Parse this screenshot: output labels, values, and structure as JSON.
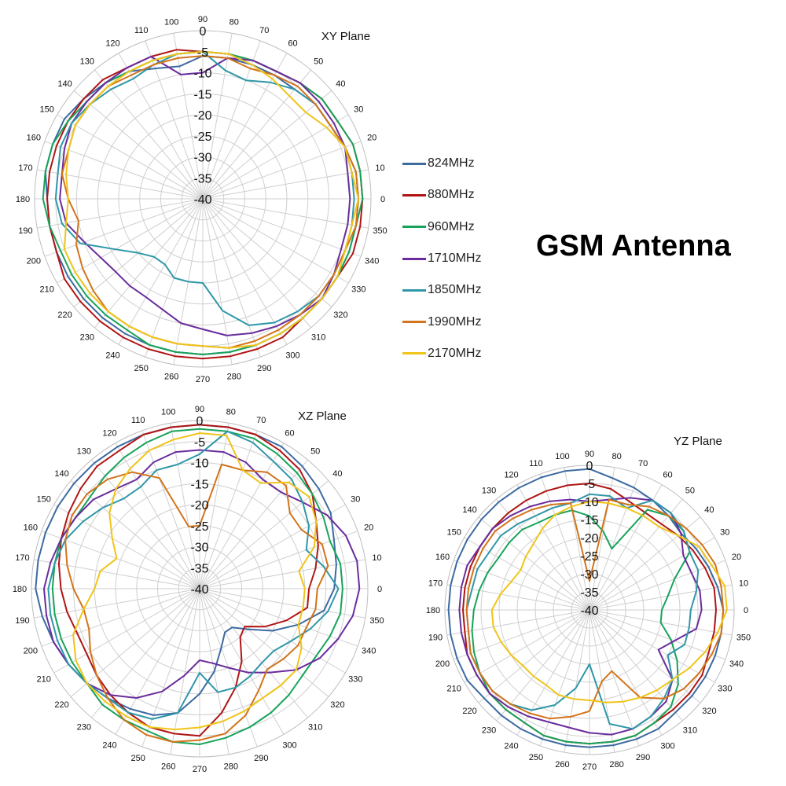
{
  "figure": {
    "title": "GSM Antenna"
  },
  "legend": {
    "items": [
      {
        "name": "824MHz",
        "color": "#3d6aa1"
      },
      {
        "name": "880MHz",
        "color": "#b01515"
      },
      {
        "name": "960MHz",
        "color": "#18a35a"
      },
      {
        "name": "1710MHz",
        "color": "#6a2c9c"
      },
      {
        "name": "1850MHz",
        "color": "#2f97a8"
      },
      {
        "name": "1990MHz",
        "color": "#d2741b"
      },
      {
        "name": "2170MHz",
        "color": "#f0c419"
      }
    ]
  },
  "chart_data": [
    {
      "type": "polar-line",
      "title": "XY Plane",
      "angles_deg": [
        0,
        10,
        20,
        30,
        40,
        50,
        60,
        70,
        80,
        90,
        100,
        110,
        120,
        130,
        140,
        150,
        160,
        170,
        180,
        190,
        200,
        210,
        220,
        230,
        240,
        250,
        260,
        270,
        280,
        290,
        300,
        310,
        320,
        330,
        340,
        350
      ],
      "angle_tick_labels": [
        "0",
        "10",
        "20",
        "30",
        "40",
        "50",
        "60",
        "70",
        "80",
        "90",
        "100",
        "110",
        "120",
        "130",
        "140",
        "150",
        "160",
        "170",
        "180",
        "190",
        "200",
        "210",
        "220",
        "230",
        "240",
        "250",
        "260",
        "270",
        "280",
        "290",
        "300",
        "310",
        "320",
        "330",
        "340",
        "350"
      ],
      "radial_ticks": [
        0,
        -5,
        -10,
        -15,
        -20,
        -25,
        -30,
        -35,
        -40
      ],
      "rlim": [
        -40,
        0
      ],
      "grid": true,
      "series": [
        {
          "name": "824MHz",
          "color": "#3d6aa1",
          "values": [
            -3,
            -3,
            -4,
            -5,
            -5,
            -6,
            -6,
            -6,
            -6,
            -6,
            -8,
            -7,
            -5,
            -4,
            -3,
            -2,
            -2,
            -2,
            -3,
            -3,
            -3,
            -3,
            -3,
            -3,
            -3,
            -3,
            -3,
            -3,
            -3,
            -3,
            -3,
            -3,
            -3,
            -3,
            -3,
            -3
          ]
        },
        {
          "name": "880MHz",
          "color": "#b01515",
          "values": [
            -2,
            -2,
            -2,
            -3,
            -3,
            -4,
            -5,
            -5,
            -5,
            -5,
            -4,
            -4,
            -4,
            -3,
            -3,
            -3,
            -3,
            -3,
            -3,
            -3,
            -3,
            -2,
            -2,
            -2,
            -2,
            -2,
            -2,
            -2,
            -2,
            -2,
            -2,
            -3,
            -3,
            -3,
            -2,
            -2
          ]
        },
        {
          "name": "960MHz",
          "color": "#18a35a",
          "values": [
            -2,
            -2,
            -2,
            -3,
            -3,
            -4,
            -5,
            -5,
            -5,
            -5,
            -5,
            -5,
            -5,
            -4,
            -4,
            -3,
            -2,
            -2,
            -2,
            -3,
            -4,
            -4,
            -4,
            -4,
            -4,
            -3,
            -3,
            -3,
            -3,
            -3,
            -3,
            -3,
            -3,
            -3,
            -3,
            -3
          ]
        },
        {
          "name": "1710MHz",
          "color": "#6a2c9c",
          "values": [
            -5,
            -5,
            -4,
            -4,
            -4,
            -4,
            -5,
            -5,
            -6,
            -10,
            -10,
            -4,
            -4,
            -4,
            -4,
            -4,
            -5,
            -6,
            -6,
            -7,
            -10,
            -12,
            -13,
            -13,
            -13,
            -12,
            -10,
            -9,
            -7,
            -6,
            -5,
            -4,
            -3,
            -4,
            -5,
            -5
          ]
        },
        {
          "name": "1850MHz",
          "color": "#2f97a8",
          "values": [
            -4,
            -4,
            -4,
            -5,
            -5,
            -6,
            -8,
            -10,
            -9,
            -5,
            -5,
            -6,
            -7,
            -6,
            -5,
            -4,
            -4,
            -5,
            -5,
            -6,
            -9,
            -16,
            -20,
            -22,
            -22,
            -20,
            -20,
            -20,
            -13,
            -8,
            -6,
            -5,
            -4,
            -4,
            -4,
            -4
          ]
        },
        {
          "name": "1990MHz",
          "color": "#d2741b",
          "values": [
            -3,
            -3,
            -4,
            -5,
            -5,
            -5,
            -6,
            -7,
            -6,
            -6,
            -6,
            -6,
            -6,
            -5,
            -5,
            -5,
            -6,
            -6,
            -8,
            -10,
            -8,
            -7,
            -6,
            -5,
            -5,
            -5,
            -5,
            -5,
            -4,
            -4,
            -4,
            -4,
            -4,
            -4,
            -4,
            -3
          ]
        },
        {
          "name": "2170MHz",
          "color": "#f0c419",
          "values": [
            -3,
            -4,
            -4,
            -6,
            -8,
            -8,
            -7,
            -6,
            -5,
            -5,
            -5,
            -5,
            -5,
            -5,
            -5,
            -5,
            -6,
            -7,
            -8,
            -7,
            -5,
            -5,
            -5,
            -5,
            -5,
            -5,
            -5,
            -5,
            -4,
            -3,
            -3,
            -3,
            -3,
            -3,
            -4,
            -4
          ]
        }
      ]
    },
    {
      "type": "polar-line",
      "title": "XZ Plane",
      "angles_deg": [
        0,
        10,
        20,
        30,
        40,
        50,
        60,
        70,
        80,
        90,
        100,
        110,
        120,
        130,
        140,
        150,
        160,
        170,
        180,
        190,
        200,
        210,
        220,
        230,
        240,
        250,
        260,
        270,
        280,
        290,
        300,
        310,
        320,
        330,
        340,
        350
      ],
      "angle_tick_labels": [
        "0",
        "10",
        "20",
        "30",
        "40",
        "50",
        "60",
        "70",
        "80",
        "90",
        "100",
        "110",
        "120",
        "130",
        "140",
        "150",
        "160",
        "170",
        "180",
        "190",
        "200",
        "210",
        "220",
        "230",
        "240",
        "250",
        "260",
        "270",
        "280",
        "290",
        "300",
        "310",
        "320",
        "330",
        "340",
        "350"
      ],
      "radial_ticks": [
        0,
        -5,
        -10,
        -15,
        -20,
        -25,
        -30,
        -35,
        -40
      ],
      "rlim": [
        -40,
        0
      ],
      "grid": true,
      "series": [
        {
          "name": "824MHz",
          "color": "#3d6aa1",
          "values": [
            -8,
            -7,
            -6,
            -4,
            -3,
            -2,
            -1,
            -1,
            -1,
            -1,
            -1,
            -1,
            -1,
            -1,
            -1,
            -1,
            -1,
            -1,
            -1,
            -2,
            -3,
            -4,
            -5,
            -6,
            -7,
            -8,
            -10,
            -15,
            -20,
            -25,
            -28,
            -28,
            -25,
            -20,
            -15,
            -10
          ]
        },
        {
          "name": "880MHz",
          "color": "#b01515",
          "values": [
            -14,
            -12,
            -10,
            -8,
            -5,
            -3,
            -2,
            -1,
            -1,
            -1,
            -1,
            -1,
            -2,
            -2,
            -3,
            -4,
            -5,
            -6,
            -7,
            -8,
            -9,
            -9,
            -8,
            -7,
            -6,
            -5,
            -5,
            -5,
            -10,
            -15,
            -20,
            -25,
            -26,
            -22,
            -18,
            -14
          ]
        },
        {
          "name": "960MHz",
          "color": "#18a35a",
          "values": [
            -6,
            -6,
            -7,
            -6,
            -5,
            -4,
            -3,
            -2,
            -2,
            -2,
            -2,
            -3,
            -4,
            -5,
            -6,
            -6,
            -5,
            -5,
            -5,
            -5,
            -5,
            -5,
            -5,
            -4,
            -4,
            -4,
            -3,
            -3,
            -4,
            -5,
            -6,
            -7,
            -8,
            -8,
            -7,
            -6
          ]
        },
        {
          "name": "1710MHz",
          "color": "#6a2c9c",
          "values": [
            -2,
            -2,
            -3,
            -5,
            -8,
            -10,
            -10,
            -8,
            -7,
            -7,
            -7,
            -8,
            -10,
            -9,
            -7,
            -6,
            -5,
            -4,
            -3,
            -3,
            -3,
            -4,
            -5,
            -7,
            -10,
            -14,
            -19,
            -23,
            -22,
            -20,
            -17,
            -14,
            -10,
            -7,
            -5,
            -3
          ]
        },
        {
          "name": "1850MHz",
          "color": "#2f97a8",
          "values": [
            -7,
            -10,
            -13,
            -10,
            -8,
            -6,
            -5,
            -3,
            -2,
            -8,
            -10,
            -10,
            -12,
            -12,
            -10,
            -8,
            -6,
            -5,
            -4,
            -4,
            -4,
            -4,
            -5,
            -6,
            -6,
            -7,
            -10,
            -20,
            -15,
            -15,
            -16,
            -17,
            -17,
            -15,
            -12,
            -9
          ]
        },
        {
          "name": "1990MHz",
          "color": "#d2741b",
          "values": [
            -12,
            -9,
            -9,
            -12,
            -12,
            -8,
            -8,
            -10,
            -10,
            -25,
            -25,
            -12,
            -8,
            -6,
            -5,
            -5,
            -6,
            -8,
            -10,
            -12,
            -12,
            -10,
            -8,
            -6,
            -4,
            -3,
            -3,
            -4,
            -5,
            -8,
            -12,
            -15,
            -14,
            -13,
            -13,
            -12
          ]
        },
        {
          "name": "2170MHz",
          "color": "#f0c419",
          "values": [
            -15,
            -16,
            -11,
            -8,
            -6,
            -7,
            -11,
            -10,
            -3,
            -3,
            -4,
            -5,
            -7,
            -9,
            -12,
            -16,
            -19,
            -16,
            -15,
            -12,
            -8,
            -6,
            -5,
            -5,
            -5,
            -5,
            -6,
            -7,
            -8,
            -9,
            -10,
            -10,
            -10,
            -12,
            -15,
            -15
          ]
        }
      ]
    },
    {
      "type": "polar-line",
      "title": "YZ Plane",
      "angles_deg": [
        0,
        10,
        20,
        30,
        40,
        50,
        60,
        70,
        80,
        90,
        100,
        110,
        120,
        130,
        140,
        150,
        160,
        170,
        180,
        190,
        200,
        210,
        220,
        230,
        240,
        250,
        260,
        270,
        280,
        290,
        300,
        310,
        320,
        330,
        340,
        350
      ],
      "angle_tick_labels": [
        "0",
        "10",
        "20",
        "30",
        "40",
        "50",
        "60",
        "70",
        "80",
        "90",
        "100",
        "110",
        "120",
        "130",
        "140",
        "150",
        "160",
        "170",
        "180",
        "190",
        "200",
        "210",
        "220",
        "230",
        "240",
        "250",
        "260",
        "270",
        "280",
        "290",
        "300",
        "310",
        "320",
        "330",
        "340",
        "350"
      ],
      "radial_ticks": [
        0,
        -5,
        -10,
        -15,
        -20,
        -25,
        -30,
        -35,
        -40
      ],
      "rlim": [
        -40,
        0
      ],
      "grid": true,
      "series": [
        {
          "name": "824MHz",
          "color": "#3d6aa1",
          "values": [
            -3,
            -4,
            -5,
            -6,
            -7,
            -6,
            -5,
            -4,
            -3,
            -1,
            -1,
            -1,
            -1,
            -1,
            -1,
            -1,
            -1,
            -1,
            -1,
            -1,
            -1,
            -1,
            -2,
            -2,
            -2,
            -2,
            -2,
            -2,
            -2,
            -2,
            -2,
            -3,
            -3,
            -3,
            -3,
            -3
          ]
        },
        {
          "name": "880MHz",
          "color": "#b01515",
          "values": [
            -5,
            -5,
            -6,
            -7,
            -8,
            -9,
            -9,
            -8,
            -6,
            -5,
            -5,
            -5,
            -5,
            -5,
            -5,
            -5,
            -5,
            -5,
            -5,
            -5,
            -4,
            -4,
            -4,
            -4,
            -4,
            -3,
            -3,
            -3,
            -3,
            -3,
            -4,
            -4,
            -4,
            -4,
            -5,
            -5
          ]
        },
        {
          "name": "960MHz",
          "color": "#18a35a",
          "values": [
            -20,
            -18,
            -15,
            -8,
            -6,
            -6,
            -8,
            -22,
            -18,
            -14,
            -12,
            -12,
            -12,
            -11,
            -11,
            -11,
            -10,
            -9,
            -8,
            -7,
            -6,
            -5,
            -4,
            -4,
            -4,
            -3,
            -3,
            -3,
            -3,
            -3,
            -4,
            -5,
            -8,
            -12,
            -16,
            -20
          ]
        },
        {
          "name": "1710MHz",
          "color": "#6a2c9c",
          "values": [
            -9,
            -9,
            -10,
            -10,
            -7,
            -5,
            -5,
            -7,
            -9,
            -10,
            -9,
            -8,
            -7,
            -6,
            -5,
            -5,
            -4,
            -4,
            -4,
            -4,
            -4,
            -4,
            -4,
            -5,
            -6,
            -7,
            -7,
            -6,
            -5,
            -5,
            -6,
            -7,
            -10,
            -18,
            -15,
            -10
          ]
        },
        {
          "name": "1850MHz",
          "color": "#2f97a8",
          "values": [
            -12,
            -10,
            -8,
            -8,
            -6,
            -5,
            -5,
            -10,
            -8,
            -8,
            -10,
            -10,
            -10,
            -9,
            -8,
            -8,
            -7,
            -7,
            -6,
            -6,
            -5,
            -5,
            -5,
            -6,
            -8,
            -12,
            -18,
            -25,
            -8,
            -5,
            -6,
            -8,
            -10,
            -15,
            -12,
            -12
          ]
        },
        {
          "name": "1990MHz",
          "color": "#d2741b",
          "values": [
            -3,
            -3,
            -3,
            -4,
            -5,
            -6,
            -7,
            -9,
            -9,
            -32,
            -10,
            -9,
            -8,
            -7,
            -6,
            -6,
            -6,
            -6,
            -6,
            -6,
            -5,
            -5,
            -5,
            -6,
            -7,
            -8,
            -10,
            -12,
            -20,
            -22,
            -12,
            -8,
            -6,
            -5,
            -4,
            -3
          ]
        },
        {
          "name": "2170MHz",
          "color": "#f0c419",
          "values": [
            -2,
            -2,
            -4,
            -5,
            -8,
            -10,
            -10,
            -10,
            -10,
            -10,
            -11,
            -12,
            -14,
            -16,
            -17,
            -18,
            -17,
            -15,
            -13,
            -13,
            -14,
            -15,
            -16,
            -16,
            -16,
            -15,
            -15,
            -15,
            -14,
            -13,
            -12,
            -11,
            -10,
            -8,
            -6,
            -4
          ]
        }
      ]
    }
  ]
}
